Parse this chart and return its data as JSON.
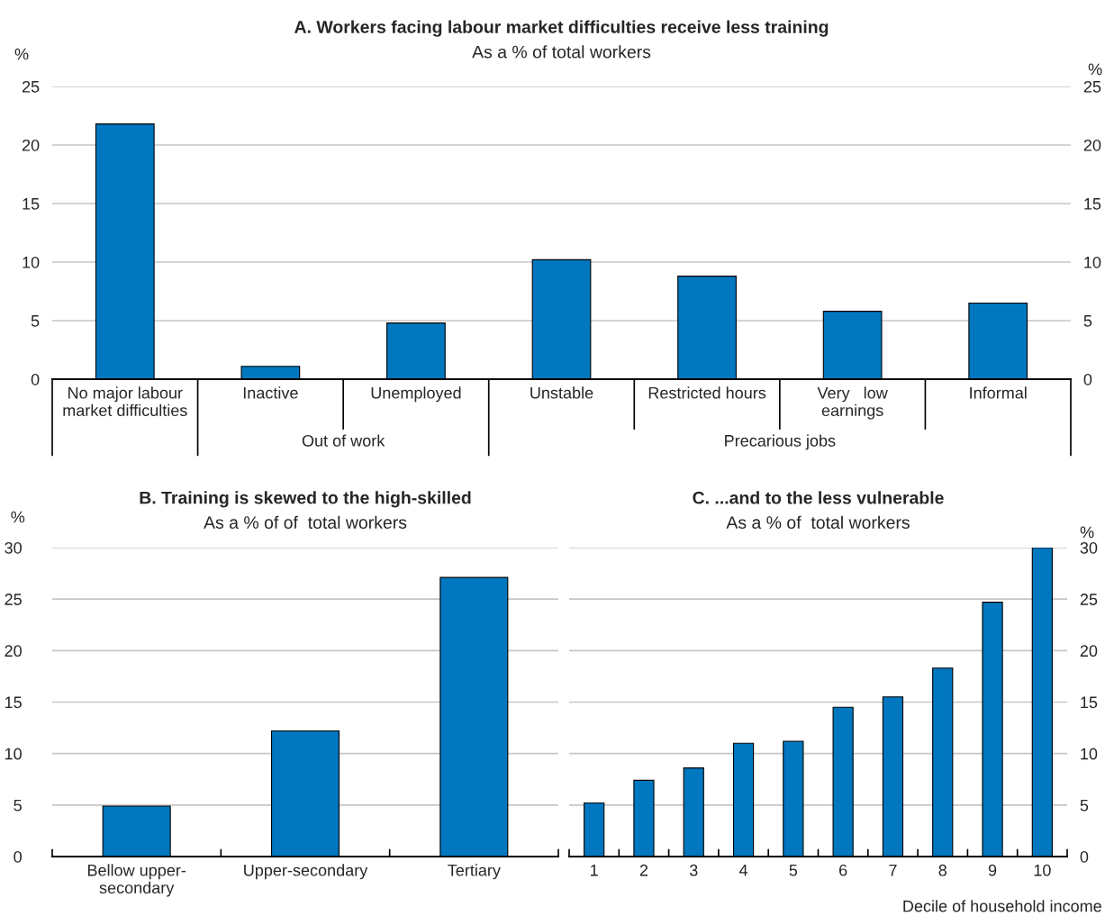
{
  "chart_data": [
    {
      "type": "bar",
      "title": "A. Workers facing labour market difficulties receive less training",
      "subtitle": "As a % of total workers",
      "ylabel": "%",
      "y2label": "%",
      "categories": [
        "No major labour\nmarket difficulties",
        "Inactive",
        "Unemployed",
        "Unstable",
        "Restricted hours",
        "Very   low\nearnings",
        "Informal"
      ],
      "values": [
        21.8,
        1.1,
        4.8,
        10.2,
        8.8,
        5.8,
        6.5
      ],
      "color": "#0077bf",
      "ylim": [
        0,
        25
      ],
      "yticks": [
        0,
        5,
        10,
        15,
        20,
        25
      ],
      "y2lim": [
        0,
        25
      ],
      "y2ticks": [
        0,
        5,
        10,
        15,
        20,
        25
      ],
      "grid": "y",
      "annotations": [
        "Out of work",
        "Precarious jobs"
      ]
    },
    {
      "type": "bar",
      "title": "B. Training is skewed to the high-skilled",
      "subtitle": "As a % of of  total workers",
      "ylabel": "%",
      "categories": [
        "Bellow upper-\nsecondary",
        "Upper-secondary",
        "Tertiary"
      ],
      "values": [
        4.9,
        12.2,
        27.1
      ],
      "color": "#0077bf",
      "ylim": [
        0,
        30
      ],
      "yticks": [
        0,
        5,
        10,
        15,
        20,
        25,
        30
      ],
      "grid": "y"
    },
    {
      "type": "bar",
      "title": "C. ...and to the less vulnerable",
      "subtitle": "As a % of  total workers",
      "y2label": "%",
      "xlabel": "Decile of household income",
      "categories": [
        "1",
        "2",
        "3",
        "4",
        "5",
        "6",
        "7",
        "8",
        "9",
        "10"
      ],
      "series": [
        {
          "color": "#0077bf",
          "axis": "y2",
          "values": [
            5.2,
            7.4,
            8.6,
            11.0,
            11.2,
            14.5,
            15.5,
            18.3,
            24.7,
            30.0
          ]
        }
      ],
      "y2lim": [
        0,
        30
      ],
      "y2ticks": [
        0,
        5,
        10,
        15,
        20,
        25,
        30
      ],
      "grid": "y"
    }
  ]
}
